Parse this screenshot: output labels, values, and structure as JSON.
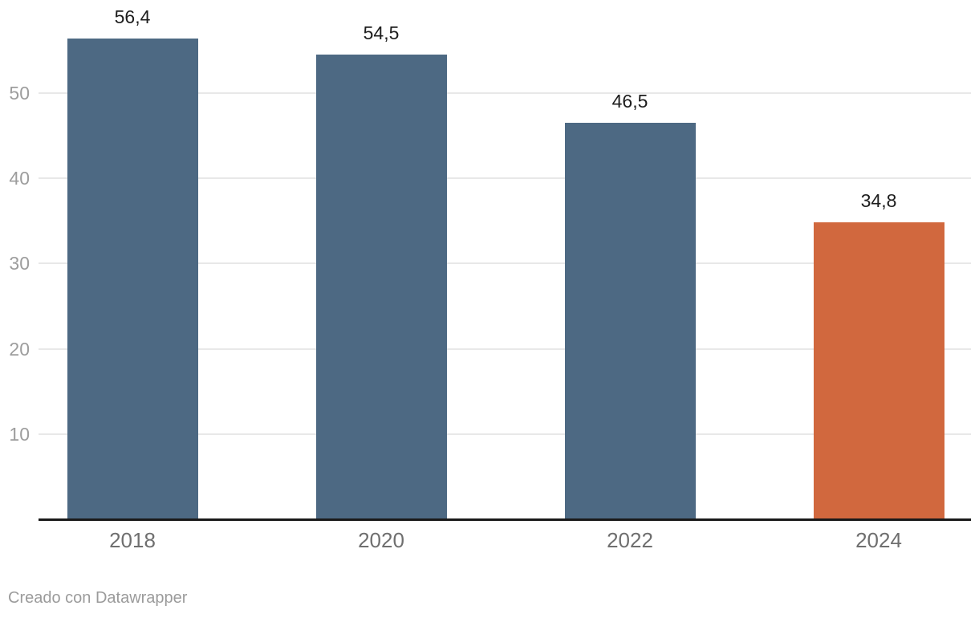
{
  "chart_data": {
    "type": "bar",
    "categories": [
      "2018",
      "2020",
      "2022",
      "2024"
    ],
    "values": [
      56.4,
      54.5,
      46.5,
      34.8
    ],
    "value_labels": [
      "56,4",
      "54,5",
      "46,5",
      "34,8"
    ],
    "bar_colors": [
      "#4d6983",
      "#4d6983",
      "#4d6983",
      "#d1683e"
    ],
    "yticks": [
      10,
      20,
      30,
      40,
      50
    ],
    "ytick_labels": [
      "10",
      "20",
      "30",
      "40",
      "50"
    ],
    "ylim": [
      0,
      60
    ],
    "grid": "on",
    "legend": "none",
    "title": "",
    "xlabel": "",
    "ylabel": ""
  },
  "colors": {
    "bar_default": "#4d6983",
    "bar_highlight": "#d1683e",
    "grid_line": "#e8e8e8",
    "axis_line": "#1a1a1a",
    "tick_label": "#9d9d9d",
    "category_label": "#6f6f6f",
    "value_label": "#1d1d1d",
    "footer_text": "#9b9b9b"
  },
  "footer": {
    "attribution": "Creado con Datawrapper"
  }
}
